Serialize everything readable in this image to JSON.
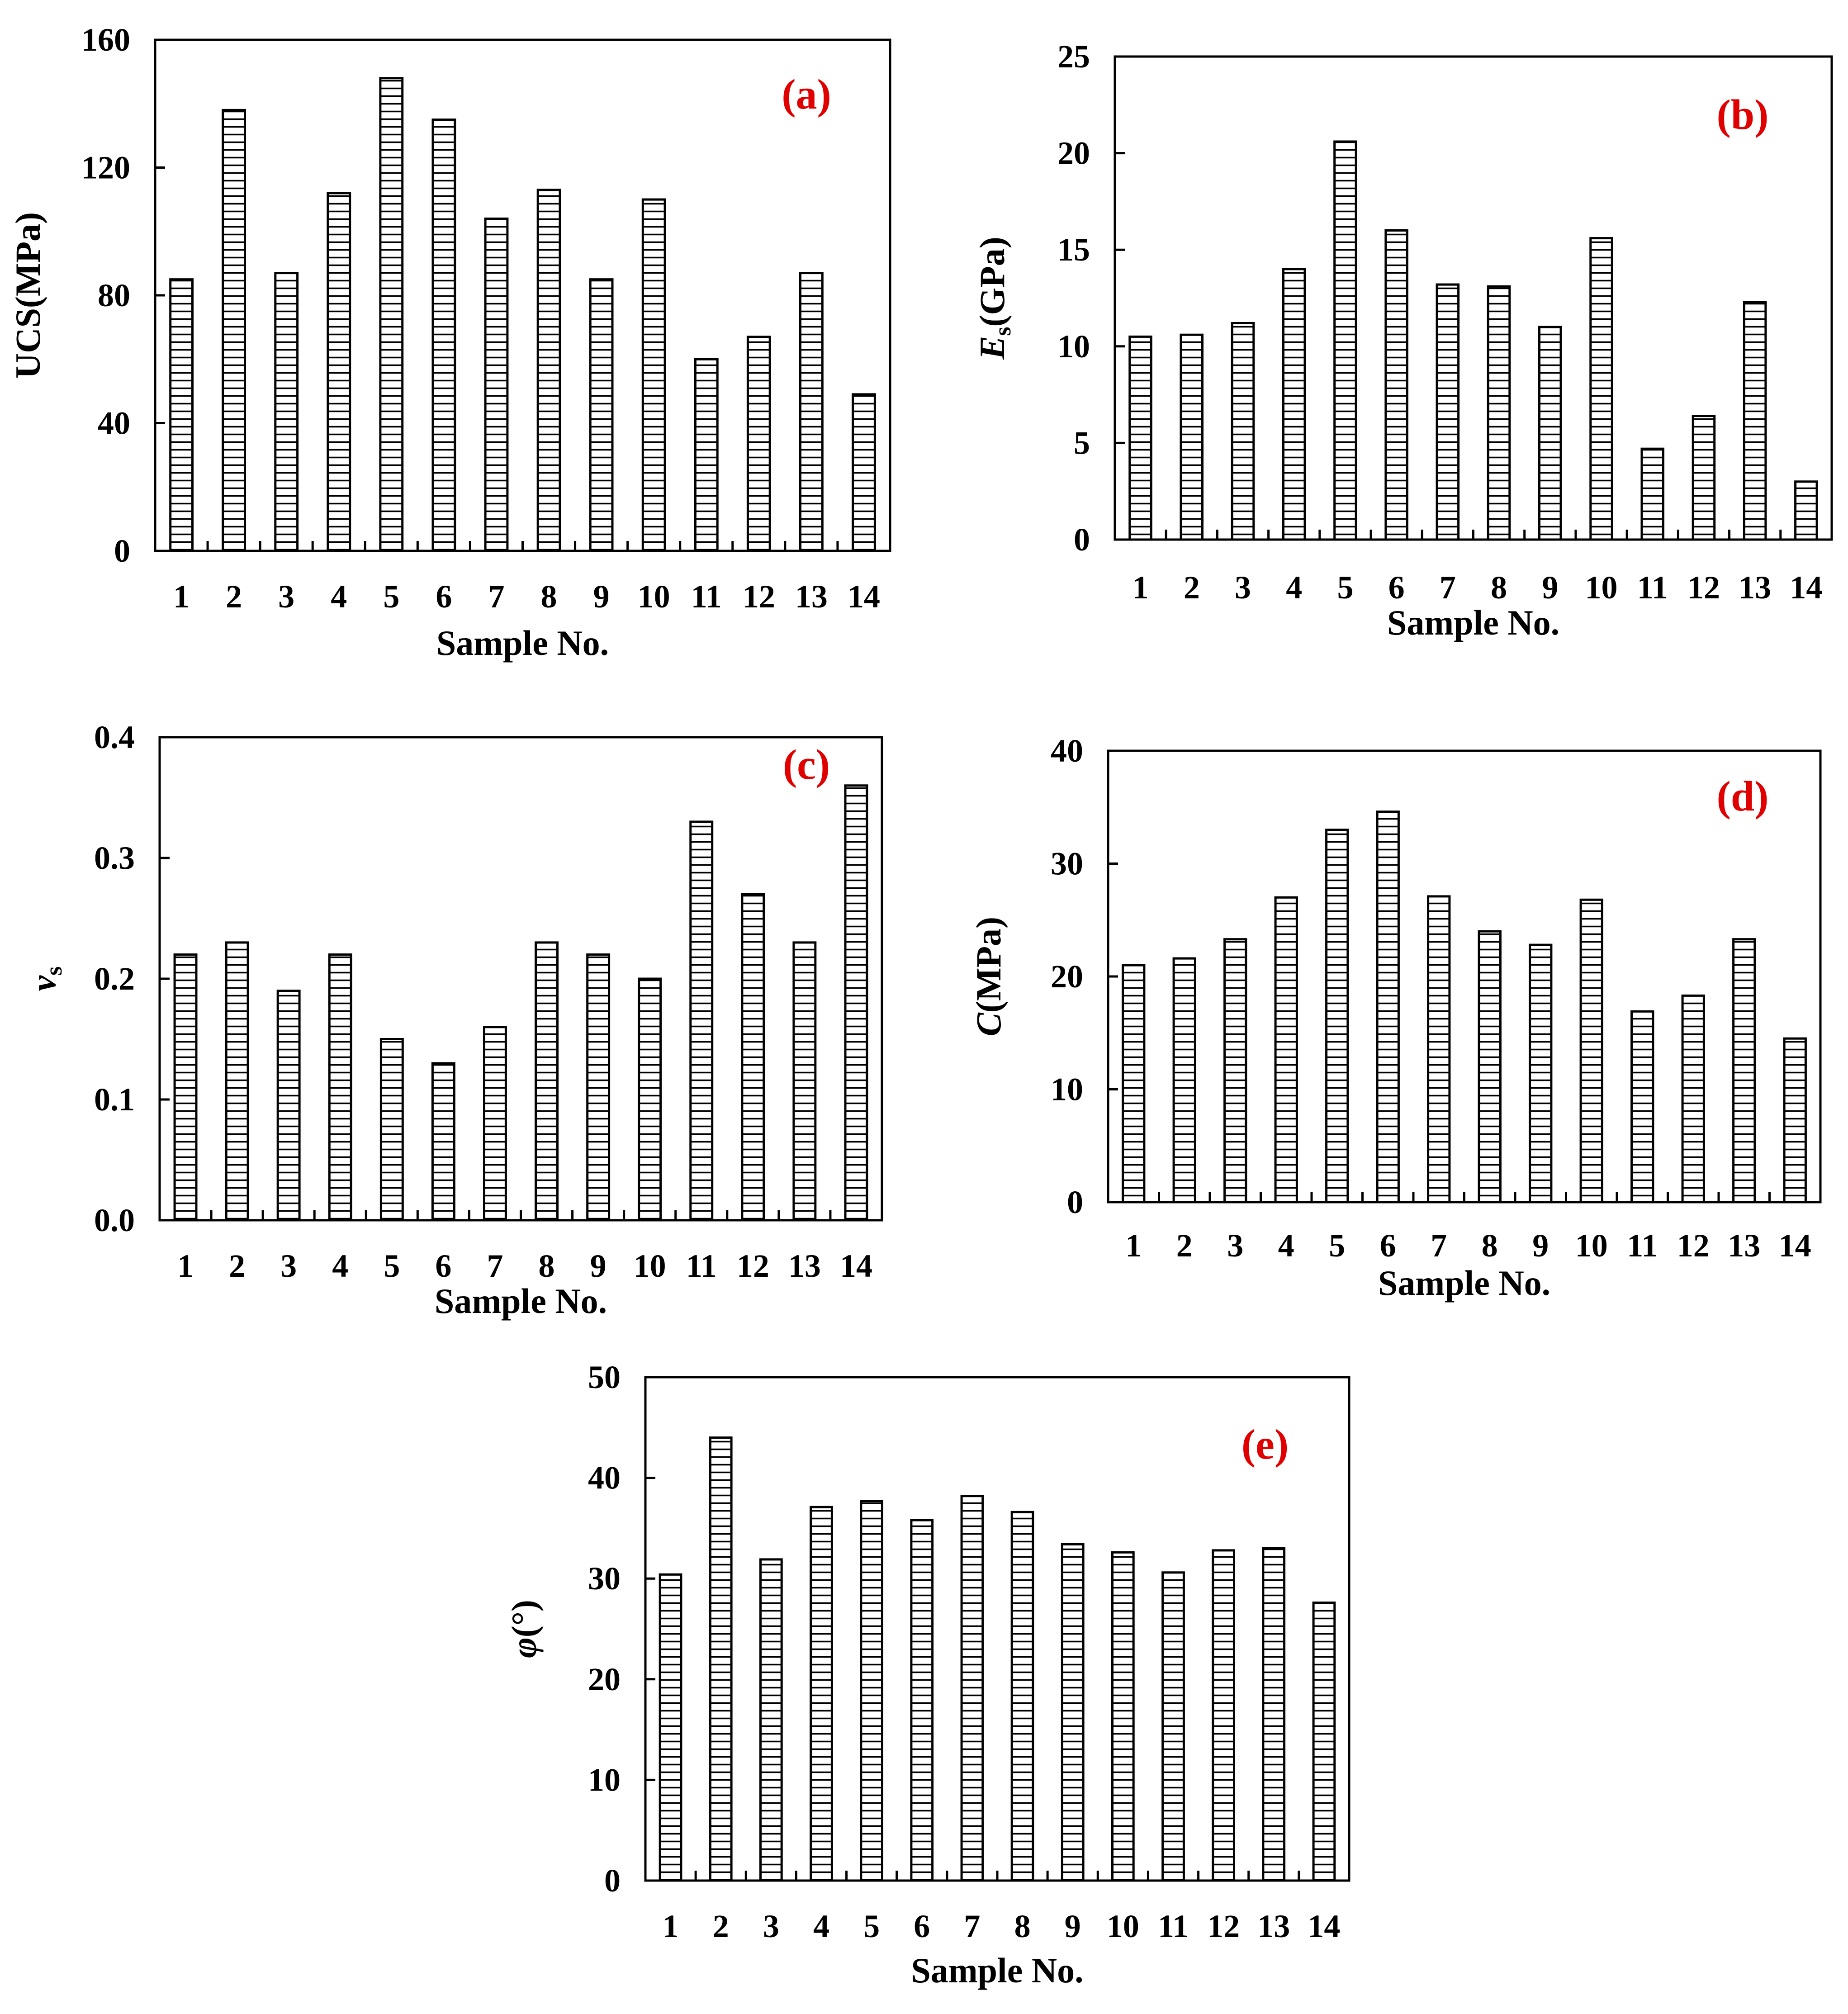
{
  "figure": {
    "colors": {
      "axis": "#000000",
      "bar_fill": "#ffffff",
      "bar_hatch": "#000000",
      "panel_label": "#e00000"
    }
  },
  "chart_data": [
    {
      "id": "a",
      "type": "bar",
      "panel_label": "(a)",
      "categories": [
        "1",
        "2",
        "3",
        "4",
        "5",
        "6",
        "7",
        "8",
        "9",
        "10",
        "11",
        "12",
        "13",
        "14"
      ],
      "values": [
        85,
        138,
        87,
        112,
        148,
        135,
        104,
        113,
        85,
        110,
        60,
        67,
        87,
        49
      ],
      "xlabel": "Sample No.",
      "ylabel_parts": [
        {
          "text": "UCS(MPa)",
          "style": "normal"
        }
      ],
      "ylim": [
        0,
        160
      ],
      "yticks": [
        "0",
        "40",
        "80",
        "120",
        "160"
      ],
      "grid": false,
      "hatch": "horizontal"
    },
    {
      "id": "b",
      "type": "bar",
      "panel_label": "(b)",
      "categories": [
        "1",
        "2",
        "3",
        "4",
        "5",
        "6",
        "7",
        "8",
        "9",
        "10",
        "11",
        "12",
        "13",
        "14"
      ],
      "values": [
        10.5,
        10.6,
        11.2,
        14.0,
        20.6,
        16.0,
        13.2,
        13.1,
        11.0,
        15.6,
        4.7,
        6.4,
        12.3,
        3.0
      ],
      "xlabel": "Sample No.",
      "ylabel_parts": [
        {
          "text": "E",
          "style": "italic"
        },
        {
          "text": "s",
          "style": "sub"
        },
        {
          "text": "(GPa)",
          "style": "normal"
        }
      ],
      "ylim": [
        0,
        25
      ],
      "yticks": [
        "0",
        "5",
        "10",
        "15",
        "20",
        "25"
      ],
      "grid": false,
      "hatch": "horizontal"
    },
    {
      "id": "c",
      "type": "bar",
      "panel_label": "(c)",
      "categories": [
        "1",
        "2",
        "3",
        "4",
        "5",
        "6",
        "7",
        "8",
        "9",
        "10",
        "11",
        "12",
        "13",
        "14"
      ],
      "values": [
        0.22,
        0.23,
        0.19,
        0.22,
        0.15,
        0.13,
        0.16,
        0.23,
        0.22,
        0.2,
        0.33,
        0.27,
        0.23,
        0.36
      ],
      "xlabel": "Sample No.",
      "ylabel_parts": [
        {
          "text": "v",
          "style": "italic"
        },
        {
          "text": "s",
          "style": "sub"
        }
      ],
      "ylim": [
        0,
        0.4
      ],
      "yticks": [
        "0.0",
        "0.1",
        "0.2",
        "0.3",
        "0.4"
      ],
      "grid": false,
      "hatch": "horizontal"
    },
    {
      "id": "d",
      "type": "bar",
      "panel_label": "(d)",
      "categories": [
        "1",
        "2",
        "3",
        "4",
        "5",
        "6",
        "7",
        "8",
        "9",
        "10",
        "11",
        "12",
        "13",
        "14"
      ],
      "values": [
        21.0,
        21.6,
        23.3,
        27.0,
        33.0,
        34.6,
        27.1,
        24.0,
        22.8,
        26.8,
        16.9,
        18.3,
        23.3,
        14.5
      ],
      "xlabel": "Sample No.",
      "ylabel_parts": [
        {
          "text": "C",
          "style": "italic"
        },
        {
          "text": "(MPa)",
          "style": "normal"
        }
      ],
      "ylim": [
        0,
        40
      ],
      "yticks": [
        "0",
        "10",
        "20",
        "30",
        "40"
      ],
      "grid": false,
      "hatch": "horizontal"
    },
    {
      "id": "e",
      "type": "bar",
      "panel_label": "(e)",
      "categories": [
        "1",
        "2",
        "3",
        "4",
        "5",
        "6",
        "7",
        "8",
        "9",
        "10",
        "11",
        "12",
        "13",
        "14"
      ],
      "values": [
        30.4,
        44.0,
        31.9,
        37.1,
        37.7,
        35.8,
        38.2,
        36.6,
        33.4,
        32.6,
        30.6,
        32.8,
        33.0,
        27.6
      ],
      "xlabel": "Sample No.",
      "ylabel_parts": [
        {
          "text": "φ",
          "style": "italic"
        },
        {
          "text": "(°)",
          "style": "normal"
        }
      ],
      "ylim": [
        0,
        50
      ],
      "yticks": [
        "0",
        "10",
        "20",
        "30",
        "40",
        "50"
      ],
      "grid": false,
      "hatch": "horizontal"
    }
  ]
}
